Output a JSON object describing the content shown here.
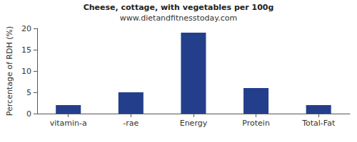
{
  "chart_data": {
    "type": "bar",
    "title": "Cheese, cottage, with vegetables per 100g",
    "subtitle": "www.dietandfitnesstoday.com",
    "y_label": "Percentage of RDH (%)",
    "categories": [
      "vitamin-a",
      "-rae",
      "Energy",
      "Protein",
      "Total-Fat"
    ],
    "values": [
      2,
      5,
      19,
      6,
      2
    ],
    "color": "#233f8c",
    "ylim": [
      0,
      20
    ],
    "yticks": [
      0,
      5,
      10,
      15,
      20
    ],
    "grid": false
  }
}
